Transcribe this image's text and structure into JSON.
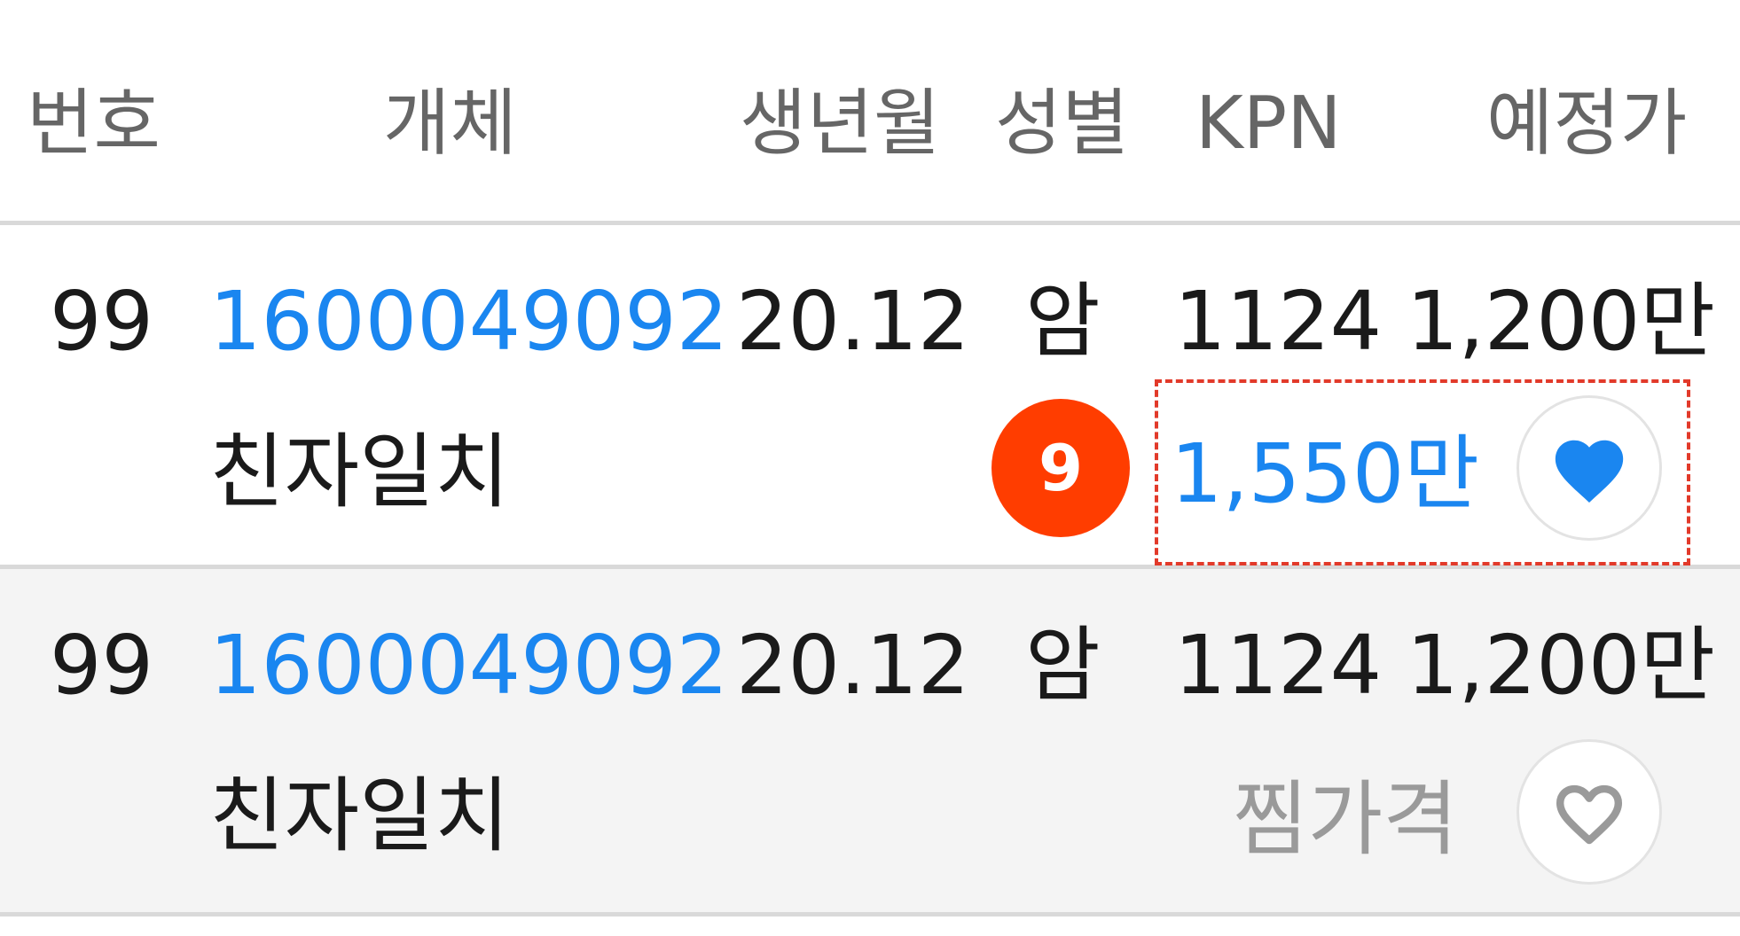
{
  "header": {
    "no": "번호",
    "object": "개체",
    "birth": "생년월",
    "sex": "성별",
    "kpn": "KPN",
    "price": "예정가"
  },
  "rows": [
    {
      "no": "99",
      "object_id": "1600049092",
      "birth": "20.12",
      "sex": "암",
      "kpn": "1124",
      "expected_price": "1,200만",
      "parentage": "친자일치",
      "bid_count": "9",
      "my_price": "1,550만",
      "wished": true
    },
    {
      "no": "99",
      "object_id": "1600049092",
      "birth": "20.12",
      "sex": "암",
      "kpn": "1124",
      "expected_price": "1,200만",
      "parentage": "친자일치",
      "wish_label": "찜가격",
      "wished": false
    }
  ],
  "colors": {
    "link_blue": "#1a86f0",
    "badge_red": "#ff3d00",
    "dashed_red": "#e23a2a",
    "header_gray": "#666666",
    "muted_gray": "#9a9a9a"
  },
  "icons": {
    "filled_heart": "heart-filled-icon",
    "outline_heart": "heart-outline-icon"
  }
}
